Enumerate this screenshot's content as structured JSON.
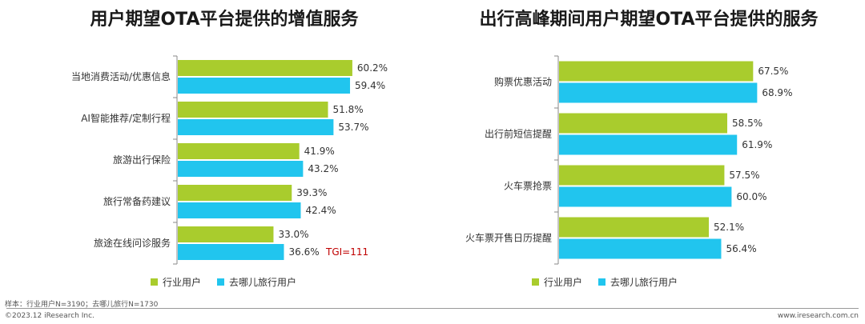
{
  "colors": {
    "industry": "#a9cc2d",
    "qunar": "#21c5ee",
    "tgi": "#c00000"
  },
  "chart_data": [
    {
      "type": "bar",
      "orientation": "horizontal",
      "title": "用户期望OTA平台提供的增值服务",
      "categories": [
        "当地消费活动/优惠信息",
        "AI智能推荐/定制行程",
        "旅游出行保险",
        "旅行常备药建议",
        "旅途在线问诊服务"
      ],
      "series": [
        {
          "name": "行业用户",
          "values": [
            60.2,
            51.8,
            41.9,
            39.3,
            33.0
          ],
          "labels": [
            "60.2%",
            "51.8%",
            "41.9%",
            "39.3%",
            "33.0%"
          ]
        },
        {
          "name": "去哪儿旅行用户",
          "values": [
            59.4,
            53.7,
            43.2,
            42.4,
            36.6
          ],
          "labels": [
            "59.4%",
            "53.7%",
            "43.2%",
            "42.4%",
            "36.6%"
          ]
        }
      ],
      "annotation": "TGI=111"
    },
    {
      "type": "bar",
      "orientation": "horizontal",
      "title": "出行高峰期间用户期望OTA平台提供的服务",
      "categories": [
        "购票优惠活动",
        "出行前短信提醒",
        "火车票抢票",
        "火车票开售日历提醒"
      ],
      "series": [
        {
          "name": "行业用户",
          "values": [
            67.5,
            58.5,
            57.5,
            52.1
          ],
          "labels": [
            "67.5%",
            "58.5%",
            "57.5%",
            "52.1%"
          ]
        },
        {
          "name": "去哪儿旅行用户",
          "values": [
            68.9,
            61.9,
            60.0,
            56.4
          ],
          "labels": [
            "68.9%",
            "61.9%",
            "60.0%",
            "56.4%"
          ]
        }
      ]
    }
  ],
  "legend": {
    "industry": "行业用户",
    "qunar": "去哪儿旅行用户"
  },
  "footer": {
    "sample": "样本：行业用户N=3190；去哪儿旅行N=1730",
    "copyright": "©2023.12 iResearch Inc.",
    "website": "www.iresearch.com.cn"
  }
}
